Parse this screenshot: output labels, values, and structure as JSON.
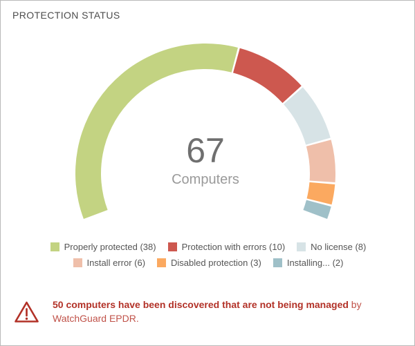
{
  "header": {
    "title": "PROTECTION STATUS"
  },
  "chart_data": {
    "type": "gauge-donut",
    "title": "PROTECTION STATUS",
    "center_value": "67",
    "center_label": "Computers",
    "total": 67,
    "start_angle": -111,
    "end_angle": 111,
    "legend_position": "bottom",
    "segments": [
      {
        "label": "Properly protected",
        "value": 38,
        "color": "#c3d382"
      },
      {
        "label": "Protection with errors",
        "value": 10,
        "color": "#cd584f"
      },
      {
        "label": "No license",
        "value": 8,
        "color": "#d7e3e6"
      },
      {
        "label": "Install error",
        "value": 6,
        "color": "#efbfaa"
      },
      {
        "label": "Disabled protection",
        "value": 3,
        "color": "#fba960"
      },
      {
        "label": "Installing...",
        "value": 2,
        "color": "#9fc0c8"
      }
    ]
  },
  "warning": {
    "message_bold": "50 computers have been discovered that are not being managed",
    "message_line1_tail": "by",
    "message_line2": "WatchGuard EPDR."
  },
  "colors": {
    "warning_bold": "#b23127",
    "warning_regular": "#c05249",
    "legend_text": "#555555",
    "center_value": "#6f6f6f",
    "center_label": "#9a9a9a",
    "card_border": "#b9b9b9"
  }
}
